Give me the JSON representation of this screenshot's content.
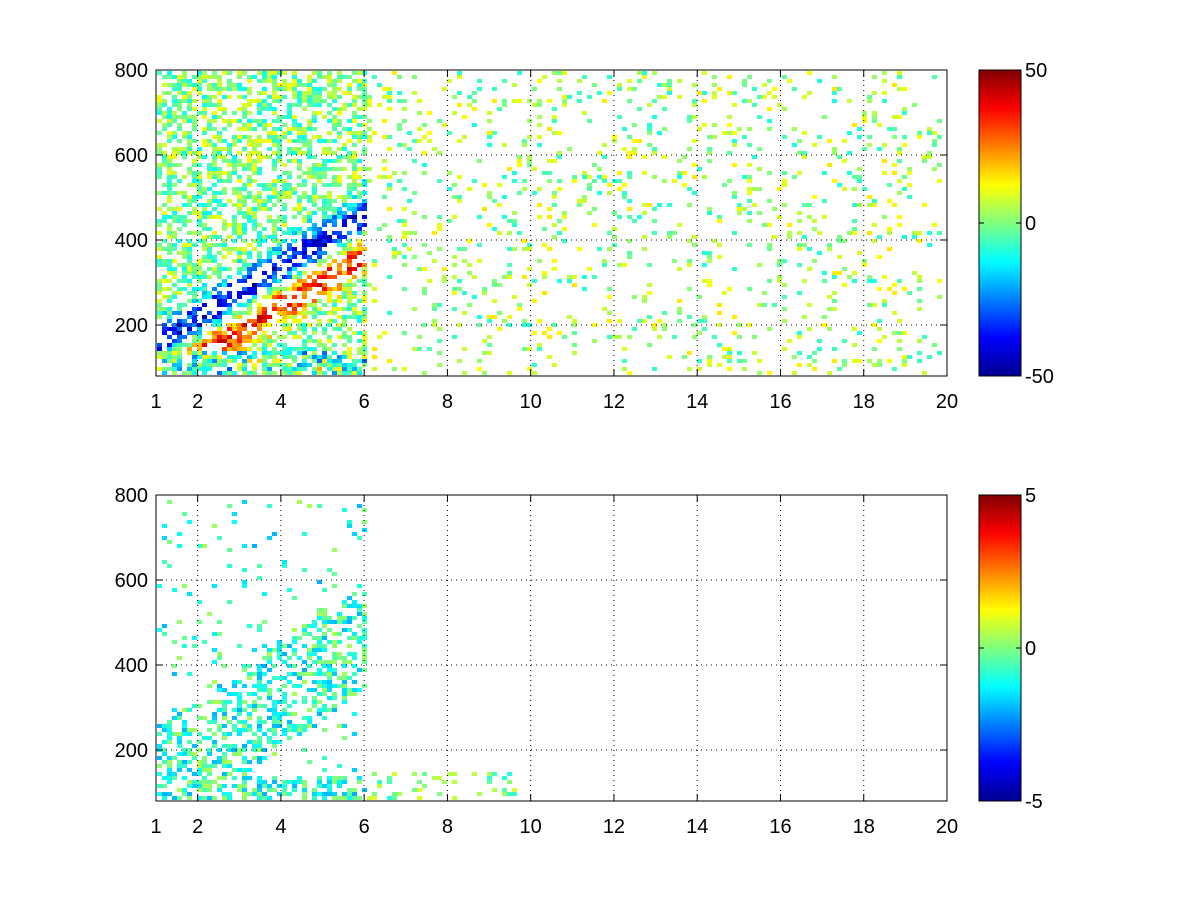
{
  "chart_data": [
    {
      "type": "heatmap",
      "title": "",
      "xlabel": "",
      "ylabel": "",
      "xlim": [
        1,
        20
      ],
      "ylim": [
        80,
        800
      ],
      "xticks": [
        1,
        2,
        4,
        6,
        8,
        10,
        12,
        14,
        16,
        18,
        20
      ],
      "xtick_labels": [
        "1",
        "2",
        "4",
        "6",
        "8",
        "10",
        "12",
        "14",
        "16",
        "18",
        "20"
      ],
      "yticks": [
        200,
        400,
        600,
        800
      ],
      "ytick_labels": [
        "200",
        "400",
        "600",
        "800"
      ],
      "grid": true,
      "colormap": "jet",
      "clim": [
        -50,
        50
      ],
      "colorbar_ticks": [
        -50,
        0,
        50
      ],
      "colorbar_labels": [
        "-50",
        "0",
        "50"
      ]
    },
    {
      "type": "heatmap",
      "title": "",
      "xlabel": "",
      "ylabel": "",
      "xlim": [
        1,
        20
      ],
      "ylim": [
        80,
        800
      ],
      "xticks": [
        1,
        2,
        4,
        6,
        8,
        10,
        12,
        14,
        16,
        18,
        20
      ],
      "xtick_labels": [
        "1",
        "2",
        "4",
        "6",
        "8",
        "10",
        "12",
        "14",
        "16",
        "18",
        "20"
      ],
      "yticks": [
        200,
        400,
        600,
        800
      ],
      "ytick_labels": [
        "200",
        "400",
        "600",
        "800"
      ],
      "grid": true,
      "colormap": "jet",
      "clim": [
        -5,
        5
      ],
      "colorbar_ticks": [
        -5,
        0,
        5
      ],
      "colorbar_labels": [
        "-5",
        "0",
        "5"
      ]
    }
  ]
}
